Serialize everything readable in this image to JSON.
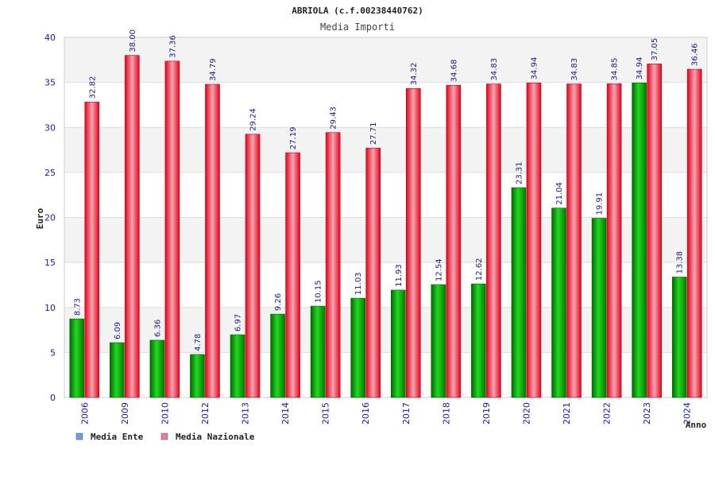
{
  "chart_data": {
    "type": "bar",
    "title": "ABRIOLA (c.f.00238440762)",
    "subtitle": "Media Importi",
    "xlabel": "Anno",
    "ylabel": "Euro",
    "ylim": [
      0,
      40
    ],
    "yticks": [
      0,
      5,
      10,
      15,
      20,
      25,
      30,
      35,
      40
    ],
    "categories": [
      "2006",
      "2009",
      "2010",
      "2012",
      "2013",
      "2014",
      "2015",
      "2016",
      "2017",
      "2018",
      "2019",
      "2020",
      "2021",
      "2022",
      "2023",
      "2024"
    ],
    "series": [
      {
        "name": "Media Ente",
        "color": "#00b000",
        "legend_color": "#6a9ee8",
        "values": [
          8.73,
          6.09,
          6.36,
          4.78,
          6.97,
          9.26,
          10.15,
          11.03,
          11.93,
          12.54,
          12.62,
          23.31,
          21.04,
          19.91,
          34.94,
          13.38
        ],
        "labels": [
          "8.73",
          "6.09",
          "6.36",
          "4.78",
          "6.97",
          "9.26",
          "10.15",
          "11.03",
          "11.93",
          "12.54",
          "12.62",
          "23.31",
          "21.04",
          "19.91",
          "34.94",
          "13.38"
        ]
      },
      {
        "name": "Media Nazionale",
        "color": "#e8102a",
        "legend_color": "#e080a8",
        "values": [
          32.82,
          38.0,
          37.36,
          34.79,
          29.24,
          27.19,
          29.43,
          27.71,
          34.32,
          34.68,
          34.83,
          34.94,
          34.83,
          34.85,
          37.05,
          36.46
        ],
        "labels": [
          "32.82",
          "38.00",
          "37.36",
          "34.79",
          "29.24",
          "27.19",
          "29.43",
          "27.71",
          "34.32",
          "34.68",
          "34.83",
          "34.94",
          "34.83",
          "34.85",
          "37.05",
          "36.46"
        ]
      }
    ],
    "grid": true,
    "legend": "bottom-left"
  }
}
